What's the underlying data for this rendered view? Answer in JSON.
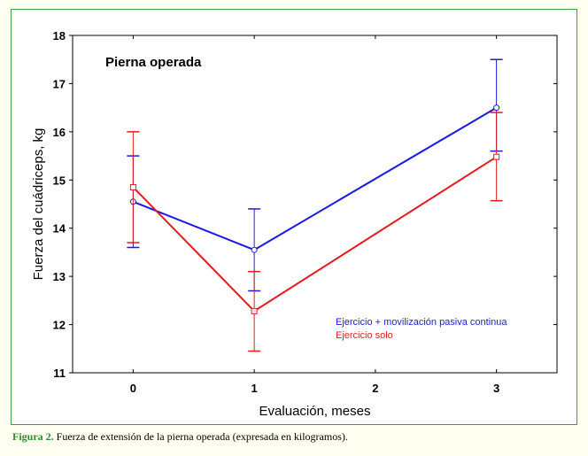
{
  "chart_data": {
    "type": "line",
    "annotation": "Pierna operada",
    "xlabel": "Evaluación, meses",
    "ylabel": "Fuerza del cuádriceps, kg",
    "xlim": [
      -0.5,
      3.5
    ],
    "ylim": [
      11,
      18
    ],
    "x_ticks": [
      0,
      1,
      2,
      3
    ],
    "y_ticks": [
      11,
      12,
      13,
      14,
      15,
      16,
      17,
      18
    ],
    "legend_position": "bottom-right",
    "grid": false,
    "series": [
      {
        "name": "Ejercicio + movilización pasiva continua",
        "color": "#1a1ae6",
        "marker": "circle",
        "x": [
          0,
          1,
          3
        ],
        "y": [
          14.55,
          13.55,
          16.5
        ],
        "err_low": [
          13.6,
          12.7,
          15.6
        ],
        "err_high": [
          15.5,
          14.4,
          17.5
        ]
      },
      {
        "name": "Ejercicio solo",
        "color": "#e61a1a",
        "marker": "square",
        "x": [
          0,
          1,
          3
        ],
        "y": [
          14.85,
          12.28,
          15.48
        ],
        "err_low": [
          13.7,
          11.45,
          14.57
        ],
        "err_high": [
          16.0,
          13.1,
          16.4
        ]
      }
    ]
  },
  "caption": {
    "label": "Figura 2.",
    "text": " Fuerza de extensión de la pierna operada (expresada en kilogramos)."
  }
}
